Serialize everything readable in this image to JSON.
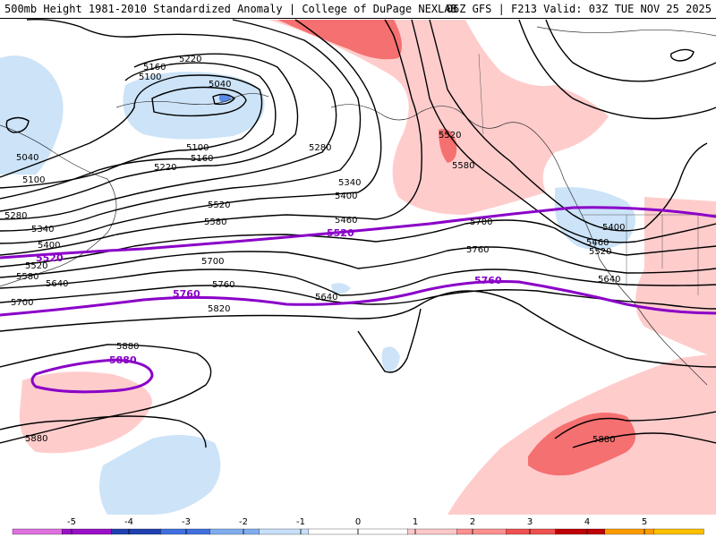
{
  "header": {
    "title_left": "500mb Height 1981-2010 Standardized Anomaly | College of DuPage NEXLAB",
    "title_right": "06Z GFS | F213 Valid: 03Z TUE NOV 25 2025"
  },
  "contour_labels": {
    "c5040": "5040",
    "c5100": "5100",
    "c5160": "5160",
    "c5220": "5220",
    "c5280": "5280",
    "c5340": "5340",
    "c5400": "5400",
    "c5460": "5460",
    "c5520": "5520",
    "c5580": "5580",
    "c5640": "5640",
    "c5700": "5700",
    "c5760": "5760",
    "c5820": "5820",
    "c5880": "5880"
  },
  "highlight_labels": {
    "h5520": "5520",
    "h5760": "5760",
    "h5880": "5880"
  },
  "colorbar": {
    "ticks": [
      "-5",
      "-4",
      "-3",
      "-2",
      "-1",
      "0",
      "1",
      "2",
      "3",
      "4",
      "5"
    ],
    "colors": [
      "#e070e0",
      "#9a10c8",
      "#2040b0",
      "#4070e0",
      "#80aef0",
      "#c8e0fa",
      "#ffffff",
      "#ffffff",
      "#ffc8c8",
      "#ff9090",
      "#f05050",
      "#c00000",
      "#ff9a00",
      "#ffc000"
    ]
  },
  "anomaly_colors": {
    "neg1": "#cce3f8",
    "neg2": "#5a8ae8",
    "pos1": "#ffcccc",
    "pos2": "#f57070"
  }
}
